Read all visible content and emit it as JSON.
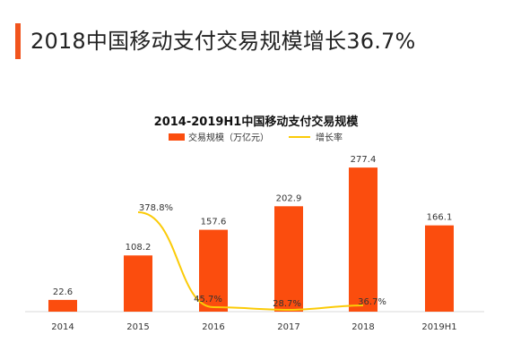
{
  "headline": "2018中国移动支付交易规模增长36.7%",
  "colors": {
    "accent": "#f1541d",
    "bar": "#fb4d0e",
    "line": "#fbcb08"
  },
  "chart_data": {
    "type": "bar",
    "title": "2014-2019H1中国移动支付交易规模",
    "categories": [
      "2014",
      "2015",
      "2016",
      "2017",
      "2018",
      "2019H1"
    ],
    "series": [
      {
        "name": "交易规模（万亿元）",
        "type": "bar",
        "values": [
          22.6,
          108.2,
          157.6,
          202.9,
          277.4,
          166.1
        ],
        "labels": [
          "22.6",
          "108.2",
          "157.6",
          "202.9",
          "277.4",
          "166.1"
        ]
      },
      {
        "name": "增长率",
        "type": "line",
        "values": [
          null,
          378.8,
          45.7,
          28.7,
          36.7,
          null
        ],
        "labels": [
          "",
          "378.8%",
          "45.7%",
          "28.7%",
          "36.7%",
          ""
        ]
      }
    ],
    "legend_position": "top",
    "grid": false
  }
}
